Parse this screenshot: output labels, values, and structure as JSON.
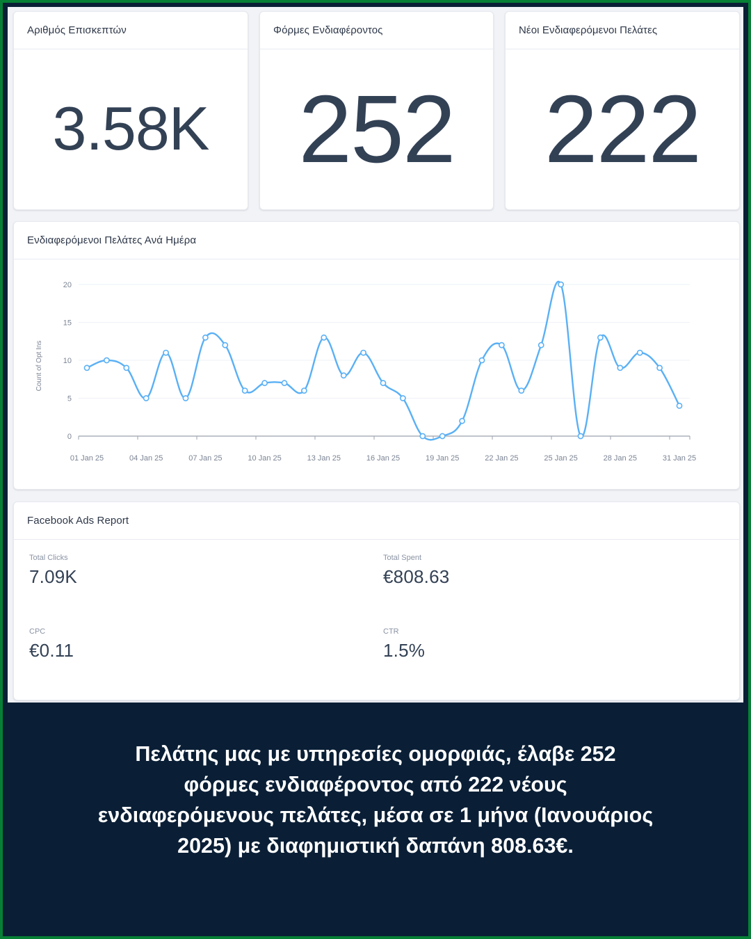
{
  "colors": {
    "frame_border": "#078035",
    "frame_bg": "#0a1f36",
    "dashboard_bg": "#f1f3f7",
    "card_bg": "#ffffff",
    "text_primary": "#334155",
    "line_series": "#5ab0f5"
  },
  "kpis": [
    {
      "title": "Αριθμός Επισκεπτών",
      "value": "3.58K"
    },
    {
      "title": "Φόρμες Ενδιαφέροντος",
      "value": "252"
    },
    {
      "title": "Νέοι Ενδιαφερόμενοι Πελάτες",
      "value": "222"
    }
  ],
  "daily_chart": {
    "title": "Ενδιαφερόμενοι Πελάτες Ανά Ημέρα"
  },
  "chart_data": {
    "type": "line",
    "title": "Ενδιαφερόμενοι Πελάτες Ανά Ημέρα",
    "xlabel": "",
    "ylabel": "Count of Opt Ins",
    "ylim": [
      0,
      20
    ],
    "yticks": [
      0,
      5,
      10,
      15,
      20
    ],
    "grid": true,
    "legend": "none",
    "xtick_labels": [
      "01 Jan 25",
      "04 Jan 25",
      "07 Jan 25",
      "10 Jan 25",
      "13 Jan 25",
      "16 Jan 25",
      "19 Jan 25",
      "22 Jan 25",
      "25 Jan 25",
      "28 Jan 25",
      "31 Jan 25"
    ],
    "x": [
      "01 Jan 25",
      "02 Jan 25",
      "03 Jan 25",
      "04 Jan 25",
      "05 Jan 25",
      "06 Jan 25",
      "07 Jan 25",
      "08 Jan 25",
      "09 Jan 25",
      "10 Jan 25",
      "11 Jan 25",
      "12 Jan 25",
      "13 Jan 25",
      "14 Jan 25",
      "15 Jan 25",
      "16 Jan 25",
      "17 Jan 25",
      "18 Jan 25",
      "19 Jan 25",
      "20 Jan 25",
      "21 Jan 25",
      "22 Jan 25",
      "23 Jan 25",
      "24 Jan 25",
      "25 Jan 25",
      "26 Jan 25",
      "27 Jan 25",
      "28 Jan 25",
      "29 Jan 25",
      "30 Jan 25",
      "31 Jan 25"
    ],
    "series": [
      {
        "name": "Count of Opt Ins",
        "values": [
          9,
          10,
          9,
          5,
          11,
          5,
          13,
          12,
          6,
          7,
          7,
          6,
          13,
          8,
          11,
          7,
          5,
          0,
          0,
          2,
          10,
          12,
          6,
          12,
          20,
          0,
          13,
          9,
          11,
          9,
          4
        ]
      }
    ]
  },
  "facebook_ads": {
    "title": "Facebook Ads Report",
    "metrics": [
      {
        "label": "Total Clicks",
        "value": "7.09K"
      },
      {
        "label": "Total Spent",
        "value": "€808.63"
      },
      {
        "label": "CPC",
        "value": "€0.11"
      },
      {
        "label": "CTR",
        "value": "1.5%"
      }
    ]
  },
  "caption": {
    "lines": [
      "Πελάτης μας με υπηρεσίες ομορφιάς, έλαβε 252",
      "φόρμες ενδιαφέροντος από 222 νέους",
      "ενδιαφερόμενους πελάτες, μέσα σε 1 μήνα (Ιανουάριος",
      "2025) με διαφημιστική δαπάνη 808.63€."
    ]
  }
}
